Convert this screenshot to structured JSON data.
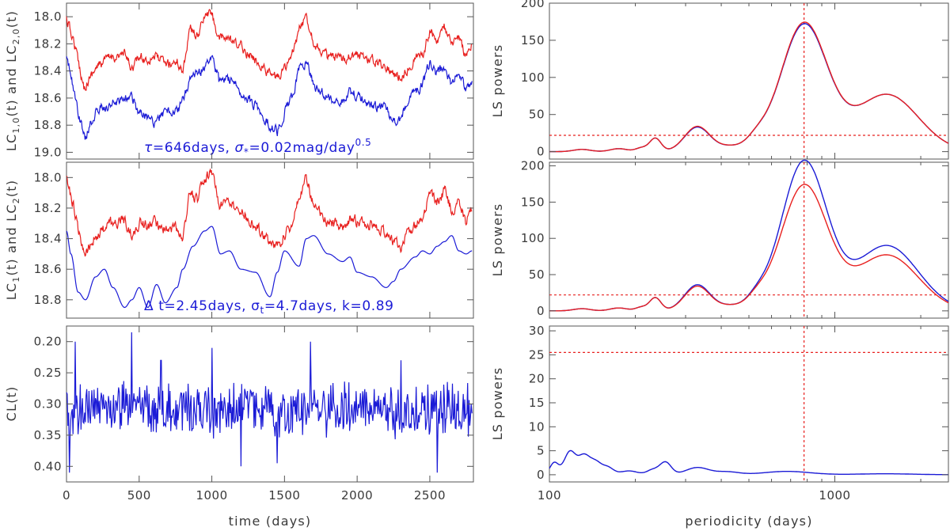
{
  "colors": {
    "red": "#e8201f",
    "blue": "#1b1bd6",
    "axis": "#555555",
    "text": "#3a3a3a"
  },
  "chart_data": [
    {
      "id": "lc0",
      "type": "line",
      "xlim": [
        0,
        2800
      ],
      "ylim": [
        19.05,
        17.9
      ],
      "y_reversed": true,
      "x_ticks": [
        0,
        500,
        1000,
        1500,
        2000,
        2500
      ],
      "y_ticks": [
        18.0,
        18.2,
        18.4,
        18.6,
        18.8,
        19.0
      ],
      "y_tick_labels": [
        "18.0",
        "18.2",
        "18.4",
        "18.6",
        "18.8",
        "19.0"
      ],
      "ylabel": "LC1,0(t) and LC2,0(t)",
      "annotation": "τ=646days, σ*=0.02mag/day^0.5",
      "series": [
        {
          "color": "red",
          "x": [
            0,
            50,
            120,
            200,
            300,
            400,
            450,
            500,
            560,
            600,
            680,
            760,
            800,
            850,
            900,
            950,
            1000,
            1050,
            1100,
            1150,
            1200,
            1300,
            1400,
            1450,
            1500,
            1550,
            1600,
            1650,
            1700,
            1750,
            1800,
            1900,
            1950,
            2000,
            2100,
            2200,
            2250,
            2300,
            2350,
            2400,
            2450,
            2500,
            2550,
            2600,
            2650,
            2700,
            2750,
            2790
          ],
          "y": [
            18.02,
            18.18,
            18.52,
            18.38,
            18.3,
            18.28,
            18.38,
            18.3,
            18.32,
            18.28,
            18.35,
            18.33,
            18.4,
            18.08,
            18.15,
            18.0,
            17.97,
            18.18,
            18.15,
            18.2,
            18.22,
            18.32,
            18.42,
            18.45,
            18.38,
            18.3,
            18.1,
            18.0,
            18.18,
            18.25,
            18.3,
            18.32,
            18.28,
            18.28,
            18.32,
            18.36,
            18.42,
            18.45,
            18.38,
            18.3,
            18.28,
            18.1,
            18.17,
            18.08,
            18.22,
            18.15,
            18.3,
            18.2
          ]
        },
        {
          "color": "blue",
          "x": [
            0,
            30,
            80,
            130,
            200,
            300,
            400,
            450,
            500,
            560,
            600,
            680,
            760,
            800,
            850,
            900,
            950,
            1000,
            1050,
            1100,
            1150,
            1200,
            1300,
            1400,
            1450,
            1500,
            1550,
            1600,
            1650,
            1700,
            1750,
            1800,
            1900,
            1950,
            2000,
            2100,
            2200,
            2250,
            2300,
            2350,
            2400,
            2450,
            2500,
            2550,
            2600,
            2650,
            2700,
            2750,
            2790
          ],
          "y": [
            18.32,
            18.42,
            18.72,
            18.9,
            18.7,
            18.65,
            18.6,
            18.58,
            18.72,
            18.75,
            18.78,
            18.7,
            18.7,
            18.62,
            18.45,
            18.42,
            18.38,
            18.28,
            18.48,
            18.45,
            18.5,
            18.55,
            18.65,
            18.8,
            18.85,
            18.7,
            18.6,
            18.4,
            18.32,
            18.5,
            18.55,
            18.6,
            18.62,
            18.55,
            18.58,
            18.65,
            18.68,
            18.78,
            18.75,
            18.62,
            18.55,
            18.5,
            18.35,
            18.42,
            18.38,
            18.5,
            18.4,
            18.55,
            18.48
          ]
        }
      ]
    },
    {
      "id": "lc",
      "type": "line",
      "xlim": [
        0,
        2800
      ],
      "ylim": [
        18.92,
        17.9
      ],
      "y_reversed": true,
      "x_ticks": [
        0,
        500,
        1000,
        1500,
        2000,
        2500
      ],
      "y_ticks": [
        18.0,
        18.2,
        18.4,
        18.6,
        18.8
      ],
      "y_tick_labels": [
        "18.0",
        "18.2",
        "18.4",
        "18.6",
        "18.8"
      ],
      "ylabel": "LC1(t) and LC2(t)",
      "annotation": "Δ t=2.45days, σt=4.7days, k=0.89",
      "series": [
        {
          "color": "red",
          "x": [
            0,
            50,
            120,
            200,
            300,
            400,
            450,
            500,
            560,
            600,
            680,
            760,
            800,
            850,
            900,
            950,
            1000,
            1050,
            1100,
            1150,
            1200,
            1300,
            1400,
            1450,
            1500,
            1550,
            1600,
            1650,
            1700,
            1750,
            1800,
            1900,
            1950,
            2000,
            2100,
            2200,
            2250,
            2300,
            2350,
            2400,
            2450,
            2500,
            2550,
            2600,
            2650,
            2700,
            2750,
            2790
          ],
          "y": [
            18.02,
            18.18,
            18.52,
            18.38,
            18.3,
            18.28,
            18.38,
            18.3,
            18.32,
            18.28,
            18.35,
            18.33,
            18.4,
            18.08,
            18.15,
            18.0,
            17.97,
            18.18,
            18.15,
            18.2,
            18.22,
            18.32,
            18.42,
            18.45,
            18.38,
            18.3,
            18.1,
            18.0,
            18.18,
            18.25,
            18.3,
            18.32,
            18.28,
            18.28,
            18.32,
            18.36,
            18.42,
            18.45,
            18.38,
            18.3,
            18.28,
            18.1,
            18.17,
            18.08,
            18.22,
            18.15,
            18.3,
            18.2
          ]
        },
        {
          "color": "blue",
          "x": [
            0,
            30,
            80,
            130,
            200,
            260,
            320,
            400,
            450,
            500,
            560,
            620,
            680,
            760,
            800,
            870,
            950,
            1000,
            1060,
            1120,
            1200,
            1300,
            1400,
            1450,
            1500,
            1600,
            1650,
            1700,
            1800,
            1900,
            1950,
            2000,
            2100,
            2200,
            2250,
            2300,
            2400,
            2450,
            2500,
            2550,
            2600,
            2650,
            2700,
            2750,
            2790
          ],
          "y": [
            18.35,
            18.5,
            18.75,
            18.8,
            18.65,
            18.6,
            18.72,
            18.85,
            18.8,
            18.72,
            18.85,
            18.7,
            18.82,
            18.72,
            18.6,
            18.45,
            18.35,
            18.32,
            18.5,
            18.48,
            18.6,
            18.62,
            18.78,
            18.62,
            18.48,
            18.58,
            18.4,
            18.38,
            18.5,
            18.55,
            18.52,
            18.62,
            18.65,
            18.72,
            18.68,
            18.6,
            18.52,
            18.48,
            18.5,
            18.45,
            18.42,
            18.38,
            18.48,
            18.5,
            18.48
          ]
        }
      ]
    },
    {
      "id": "cl",
      "type": "line",
      "xlim": [
        0,
        2800
      ],
      "ylim": [
        0.425,
        0.175
      ],
      "y_reversed": true,
      "x_ticks": [
        0,
        500,
        1000,
        1500,
        2000,
        2500
      ],
      "x_tick_labels": [
        "0",
        "500",
        "1000",
        "1500",
        "2000",
        "2500"
      ],
      "xlabel": "time (days)",
      "y_ticks": [
        0.2,
        0.25,
        0.3,
        0.35,
        0.4
      ],
      "y_tick_labels": [
        "0.20",
        "0.25",
        "0.30",
        "0.35",
        "0.40"
      ],
      "ylabel": "CL(t)",
      "series": [
        {
          "color": "blue",
          "center": 0.31,
          "amplitude": 0.04,
          "x_start": 0,
          "x_end": 2790,
          "samples": 560,
          "spikes": [
            [
              60,
              0.2
            ],
            [
              450,
              0.185
            ],
            [
              650,
              0.23
            ],
            [
              1000,
              0.21
            ],
            [
              1200,
              0.4
            ],
            [
              1680,
              0.2
            ],
            [
              1450,
              0.395
            ],
            [
              2300,
              0.23
            ],
            [
              2550,
              0.41
            ],
            [
              20,
              0.41
            ]
          ]
        }
      ]
    },
    {
      "id": "ls0",
      "type": "line",
      "x_scale": "log",
      "xlim": [
        100,
        2500
      ],
      "ylim": [
        -10,
        200
      ],
      "x_ticks": [
        100,
        1000
      ],
      "y_ticks": [
        0,
        50,
        100,
        150,
        200
      ],
      "y_tick_labels": [
        "0",
        "50",
        "100",
        "150",
        "200"
      ],
      "ylabel": "LS powers",
      "threshold": 22,
      "vline": 780,
      "series": [
        {
          "color": "blue",
          "peaks": [
            [
              780,
              170,
              0.082
            ],
            [
              1520,
              77,
              0.11
            ],
            [
              330,
              33,
              0.045
            ],
            [
              235,
              18,
              0.02
            ],
            [
              430,
              6,
              0.04
            ],
            [
              530,
              12,
              0.035
            ],
            [
              130,
              3,
              0.03
            ],
            [
              175,
              4,
              0.03
            ],
            [
              210,
              5,
              0.02
            ]
          ],
          "offset": -5
        },
        {
          "color": "red",
          "peaks": [
            [
              780,
              172,
              0.082
            ],
            [
              1520,
              77,
              0.11
            ],
            [
              330,
              34,
              0.045
            ],
            [
              235,
              18,
              0.02
            ],
            [
              430,
              6,
              0.04
            ],
            [
              530,
              12,
              0.035
            ],
            [
              130,
              3,
              0.03
            ],
            [
              175,
              4,
              0.03
            ],
            [
              210,
              5,
              0.02
            ]
          ],
          "offset": -5
        }
      ]
    },
    {
      "id": "ls",
      "type": "line",
      "x_scale": "log",
      "xlim": [
        100,
        2500
      ],
      "ylim": [
        -10,
        205
      ],
      "x_ticks": [
        100,
        1000
      ],
      "y_ticks": [
        0,
        50,
        100,
        150,
        200
      ],
      "y_tick_labels": [
        "0",
        "50",
        "100",
        "150",
        "200"
      ],
      "ylabel": "LS powers",
      "threshold": 22,
      "vline": 780,
      "series": [
        {
          "color": "blue",
          "peaks": [
            [
              780,
              205,
              0.08
            ],
            [
              1520,
              90,
              0.11
            ],
            [
              330,
              36,
              0.045
            ],
            [
              235,
              18,
              0.02
            ],
            [
              430,
              6,
              0.04
            ],
            [
              530,
              13,
              0.035
            ],
            [
              130,
              3,
              0.03
            ],
            [
              175,
              4,
              0.03
            ],
            [
              210,
              5,
              0.02
            ]
          ],
          "offset": -5
        },
        {
          "color": "red",
          "peaks": [
            [
              780,
              172,
              0.082
            ],
            [
              1520,
              77,
              0.11
            ],
            [
              330,
              34,
              0.045
            ],
            [
              235,
              18,
              0.02
            ],
            [
              430,
              6,
              0.04
            ],
            [
              530,
              12,
              0.035
            ],
            [
              130,
              3,
              0.03
            ],
            [
              175,
              4,
              0.03
            ],
            [
              210,
              5,
              0.02
            ]
          ],
          "offset": -5
        }
      ]
    },
    {
      "id": "lscl",
      "type": "line",
      "x_scale": "log",
      "xlim": [
        100,
        2500
      ],
      "ylim": [
        -1.5,
        31
      ],
      "x_ticks": [
        100,
        1000
      ],
      "x_tick_labels": [
        "100",
        "1000"
      ],
      "xlabel": "periodicity (days)",
      "y_ticks": [
        0,
        5,
        10,
        15,
        20,
        25,
        30
      ],
      "y_tick_labels": [
        "0",
        "5",
        "10",
        "15",
        "20",
        "25",
        "30"
      ],
      "ylabel": "LS powers",
      "threshold": 25.5,
      "vline": 780,
      "series": [
        {
          "color": "blue",
          "peaks": [
            [
              104,
              2.5,
              0.015
            ],
            [
              118,
              4.8,
              0.02
            ],
            [
              132,
              3.8,
              0.02
            ],
            [
              145,
              2.5,
              0.02
            ],
            [
              160,
              1.5,
              0.02
            ],
            [
              190,
              0.8,
              0.03
            ],
            [
              230,
              1.0,
              0.02
            ],
            [
              255,
              2.6,
              0.02
            ],
            [
              330,
              1.5,
              0.04
            ],
            [
              420,
              0.6,
              0.04
            ],
            [
              680,
              0.7,
              0.08
            ],
            [
              1500,
              0.2,
              0.1
            ]
          ],
          "offset": -0.3
        }
      ]
    }
  ]
}
